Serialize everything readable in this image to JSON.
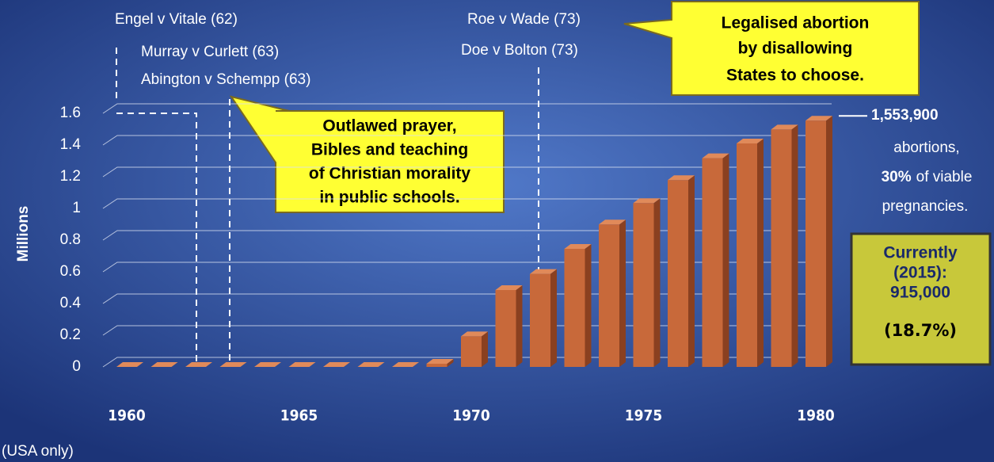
{
  "chart_data": {
    "type": "bar",
    "y_label": "Millions",
    "categories": [
      "1960",
      null,
      null,
      null,
      null,
      "1965",
      null,
      null,
      null,
      null,
      "1970",
      null,
      null,
      null,
      null,
      "1975",
      null,
      null,
      null,
      null,
      "1980"
    ],
    "values": [
      0,
      0,
      0,
      0,
      0,
      0,
      0,
      0,
      0,
      0.02,
      0.193,
      0.485,
      0.587,
      0.745,
      0.899,
      1.034,
      1.179,
      1.317,
      1.41,
      1.498,
      1.5539
    ],
    "value_labels": [
      null,
      null,
      null,
      null,
      null,
      null,
      null,
      null,
      null,
      null,
      null,
      null,
      null,
      null,
      null,
      null,
      null,
      null,
      null,
      null,
      "1,553,900"
    ],
    "color": "#c8693a",
    "ylim": [
      0,
      1.6
    ],
    "yticks": [
      0,
      0.2,
      0.4,
      0.6,
      0.8,
      1,
      1.2,
      1.4,
      1.6
    ],
    "grid": true,
    "annotations": {
      "court_cases_1962": [
        "Engel v Vitale (62)",
        "Murray v Curlett (63)",
        "Abington v Schempp (63)"
      ],
      "schools_note": [
        "Outlawed prayer,",
        "Bibles and teaching",
        "of Christian morality",
        "in public schools."
      ],
      "court_cases_1973": [
        "Roe v Wade (73)",
        "Doe v Bolton (73)"
      ],
      "abortion_note": [
        "Legalised abortion",
        "by disallowing",
        "States to choose."
      ],
      "total_text": "abortions,",
      "share": "30%",
      "share_text": "of viable",
      "share_text2": "pregnancies.",
      "current": [
        "Currently",
        "(2015):",
        "915,000",
        "(18.7%)"
      ]
    },
    "footnote": "(USA only)"
  }
}
